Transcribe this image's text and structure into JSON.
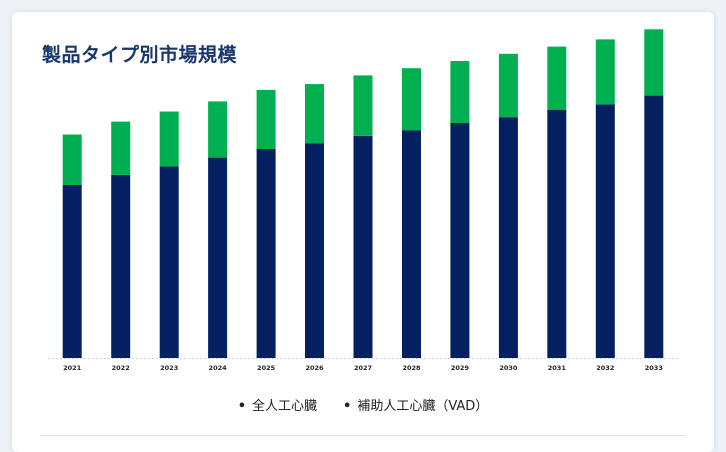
{
  "page": {
    "title": "製品タイプ別市場規模"
  },
  "chart_data": {
    "type": "bar",
    "stacked": true,
    "categories": [
      "2021",
      "2022",
      "2023",
      "2024",
      "2025",
      "2026",
      "2027",
      "2028",
      "2029",
      "2030",
      "2031",
      "2032",
      "2033"
    ],
    "series": [
      {
        "name": "全人工心臓",
        "color": "#042060",
        "values": [
          120,
          127,
          133,
          139,
          145,
          149,
          154,
          158,
          163,
          167,
          172,
          176,
          182
        ]
      },
      {
        "name": "補助人工心臓（VAD）",
        "color": "#00b050",
        "values": [
          35,
          37,
          38,
          39,
          41,
          41,
          42,
          43,
          43,
          44,
          44,
          45,
          46
        ]
      }
    ],
    "ylim": [
      0,
      240
    ],
    "grid": false,
    "legend_position": "bottom"
  }
}
